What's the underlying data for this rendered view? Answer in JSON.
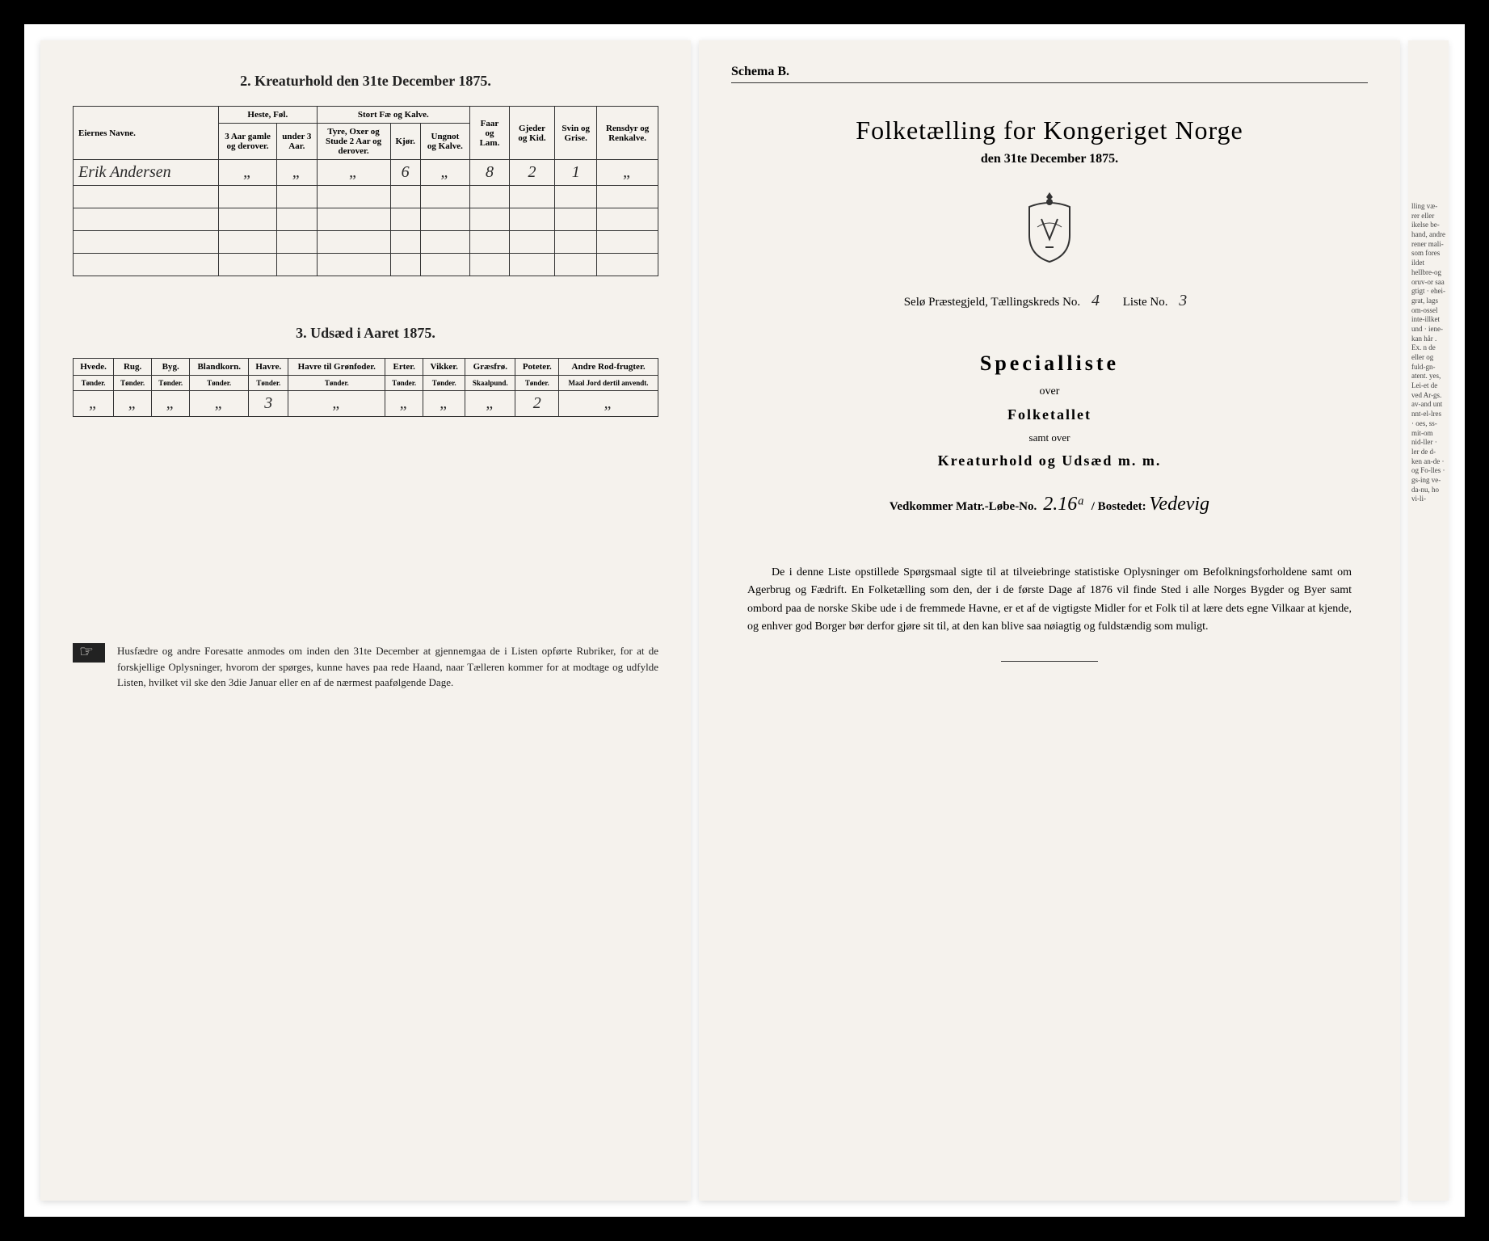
{
  "left_page": {
    "table1": {
      "title": "2. Kreaturhold den 31te December 1875.",
      "col_owner": "Eiernes Navne.",
      "group_heste": "Heste, Føl.",
      "group_stort": "Stort Fæ og Kalve.",
      "col_faar": "Faar og Lam.",
      "col_gjeder": "Gjeder og Kid.",
      "col_svin": "Svin og Grise.",
      "col_rensdyr": "Rensdyr og Renkalve.",
      "sub_h1": "3 Aar gamle og derover.",
      "sub_h2": "under 3 Aar.",
      "sub_s1": "Tyre, Oxer og Stude 2 Aar og derover.",
      "sub_s2": "Kjør.",
      "sub_s3": "Ungnot og Kalve.",
      "row_name": "Erik Andersen",
      "row_vals": [
        "„",
        "„",
        "„",
        "6",
        "„",
        "8",
        "2",
        "1",
        "„"
      ]
    },
    "table2": {
      "title": "3. Udsæd i Aaret 1875.",
      "cols": [
        {
          "h": "Hvede.",
          "s": "Tønder."
        },
        {
          "h": "Rug.",
          "s": "Tønder."
        },
        {
          "h": "Byg.",
          "s": "Tønder."
        },
        {
          "h": "Blandkorn.",
          "s": "Tønder."
        },
        {
          "h": "Havre.",
          "s": "Tønder."
        },
        {
          "h": "Havre til Grønfoder.",
          "s": "Tønder."
        },
        {
          "h": "Erter.",
          "s": "Tønder."
        },
        {
          "h": "Vikker.",
          "s": "Tønder."
        },
        {
          "h": "Græsfrø.",
          "s": "Skaalpund."
        },
        {
          "h": "Poteter.",
          "s": "Tønder."
        },
        {
          "h": "Andre Rod-frugter.",
          "s": "Maal Jord dertil anvendt."
        }
      ],
      "row_vals": [
        "„",
        "„",
        "„",
        "„",
        "3",
        "„",
        "„",
        "„",
        "„",
        "2",
        "„"
      ]
    },
    "footer": "Husfædre og andre Foresatte anmodes om inden den 31te December at gjennemgaa de i Listen opførte Rubriker, for at de forskjellige Oplysninger, hvorom der spørges, kunne haves paa rede Haand, naar Tælleren kommer for at modtage og udfylde Listen, hvilket vil ske den 3die Januar eller en af de nærmest paafølgende Dage."
  },
  "right_page": {
    "schema": "Schema B.",
    "main_title": "Folketælling for Kongeriget Norge",
    "date_line": "den 31te December 1875.",
    "parish_prefix": "Selø Præstegjeld, Tællingskreds No.",
    "parish_no": "4",
    "liste_label": "Liste No.",
    "liste_no": "3",
    "special": "Specialliste",
    "over": "over",
    "folketallet": "Folketallet",
    "samt": "samt over",
    "kreatur": "Kreaturhold og Udsæd m. m.",
    "vedkommer_label": "Vedkommer Matr.-Løbe-No.",
    "matr_no": "2.16ᵃ",
    "bostedet_label": "/ Bostedet:",
    "bostedet": "Vedevig",
    "bottom": "De i denne Liste opstillede Spørgsmaal sigte til at tilveiebringe statistiske Oplysninger om Befolkningsforholdene samt om Agerbrug og Fædrift. En Folketælling som den, der i de første Dage af 1876 vil finde Sted i alle Norges Bygder og Byer samt ombord paa de norske Skibe ude i de fremmede Havne, er et af de vigtigste Midler for et Folk til at lære dets egne Vilkaar at kjende, og enhver god Borger bør derfor gjøre sit til, at den kan blive saa nøiagtig og fuldstændig som muligt."
  },
  "fragment": "lling væ-rer eller ikelse be-hand, andre rener mali-som fores ildet hellbre-og oruv-or saa gtigt · ehei-grat, lags om-ossel inte-illket und · iene-kan hår . Ex. n de eller og fuld-gn-atent. yes, Lei-et de ved Ar-gs. av-and unt nnt-el-lres · oes, ss-mit-om nid-ller · ler de d-ken an-de · og Fo-lles · gs-ing ve-da-nu, ho vi-li-"
}
